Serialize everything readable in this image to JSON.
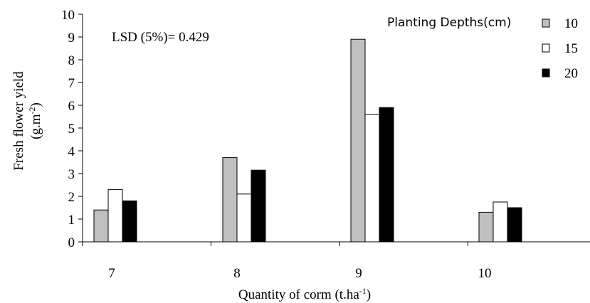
{
  "chart_data": {
    "type": "bar",
    "categories": [
      "7",
      "8",
      "9",
      "10"
    ],
    "series": [
      {
        "name": "10",
        "values": [
          1.4,
          3.7,
          8.9,
          1.3
        ],
        "color": "#c0c0c0"
      },
      {
        "name": "15",
        "values": [
          2.3,
          2.1,
          5.6,
          1.75
        ],
        "color": "#ffffff"
      },
      {
        "name": "20",
        "values": [
          1.8,
          3.15,
          5.9,
          1.5
        ],
        "color": "#000000"
      }
    ],
    "ylim": [
      0,
      10
    ],
    "yticks": [
      "0",
      "1",
      "2",
      "3",
      "4",
      "5",
      "6",
      "7",
      "8",
      "9",
      "10"
    ],
    "ylabel_line1": "Fresh flower yield",
    "ylabel_line2": "(g.m",
    "ylabel_line2_sup": "-2",
    "ylabel_line2_end": ")",
    "xlabel": "Quantity of corm  (t.ha",
    "xlabel_sup": "-1",
    "xlabel_end": ")",
    "annotation": "LSD (5%)= 0.429",
    "legend_title": "Planting Depths(cm)",
    "legend_position": "top-right",
    "grid": false
  }
}
